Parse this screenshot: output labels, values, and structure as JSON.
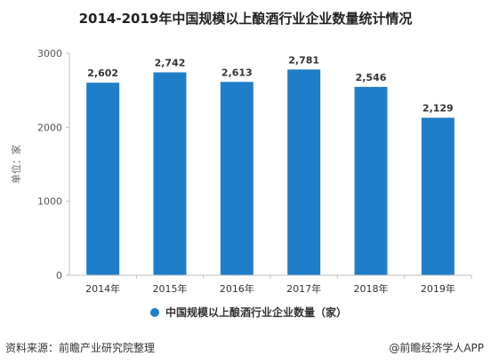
{
  "title": "2014-2019年中国规模以上酿酒行业企业数量统计情况",
  "footer": {
    "source": "资料来源：前瞻产业研究院整理",
    "credit": "@前瞻经济学人APP"
  },
  "colors": {
    "bar": "#1f7ec9",
    "axis": "#bfbfbf",
    "text": "#333333"
  },
  "chart_data": {
    "type": "bar",
    "categories": [
      "2014年",
      "2015年",
      "2016年",
      "2017年",
      "2018年",
      "2019年"
    ],
    "series": [
      {
        "name": "中国规模以上酿酒行业企业数量（家）",
        "values": [
          2602,
          2742,
          2613,
          2781,
          2546,
          2129
        ],
        "value_labels": [
          "2,602",
          "2,742",
          "2,613",
          "2,781",
          "2,546",
          "2,129"
        ]
      }
    ],
    "ylabel": "单位：家",
    "ylim": [
      0,
      3000
    ],
    "yticks": [
      0,
      1000,
      2000,
      3000
    ],
    "legend_position": "bottom-center",
    "grid": false
  }
}
